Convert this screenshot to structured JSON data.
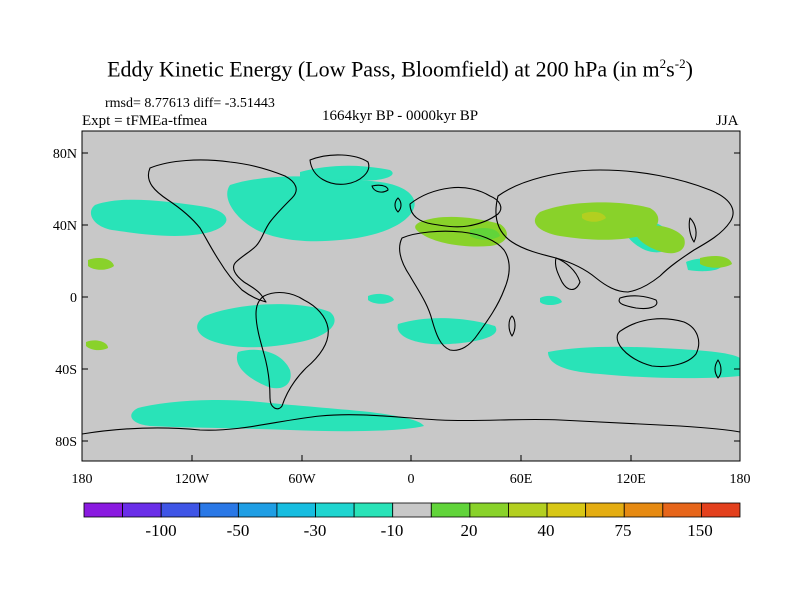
{
  "title": {
    "text": "Eddy Kinetic Energy (Low Pass, Bloomfield) at 200 hPa (in m",
    "sup1": "2",
    "mid": "s",
    "sup2": "-2",
    "close": ")"
  },
  "stats": "rmsd= 8.77613 diff= -3.51443",
  "expt": "Expt = tFMEa-tfmea",
  "period": "1664kyr BP - 0000kyr BP",
  "season": "JJA",
  "lat_labels": [
    "80N",
    "40N",
    "0",
    "40S",
    "80S"
  ],
  "lon_labels": [
    "180",
    "120W",
    "60W",
    "0",
    "60E",
    "120E",
    "180"
  ],
  "colorbar": {
    "colors": [
      "#8a1ae0",
      "#6a2ee8",
      "#3f55e6",
      "#2a78e6",
      "#1f9ee4",
      "#17bde0",
      "#1fd5d0",
      "#29e3b8",
      "#c8c8c8",
      "#61d43a",
      "#89d22a",
      "#b3cf20",
      "#d8c716",
      "#e4ad12",
      "#e68a12",
      "#e6651a",
      "#e3401d"
    ],
    "labels": [
      "-100",
      "-50",
      "-30",
      "-10",
      "20",
      "40",
      "75",
      "150"
    ]
  },
  "palette": {
    "background": "#c8c8c8",
    "negative": "#29e3b8",
    "positive_low": "#61d43a",
    "positive_mid": "#89d22a",
    "positive_high": "#b3cf20"
  }
}
